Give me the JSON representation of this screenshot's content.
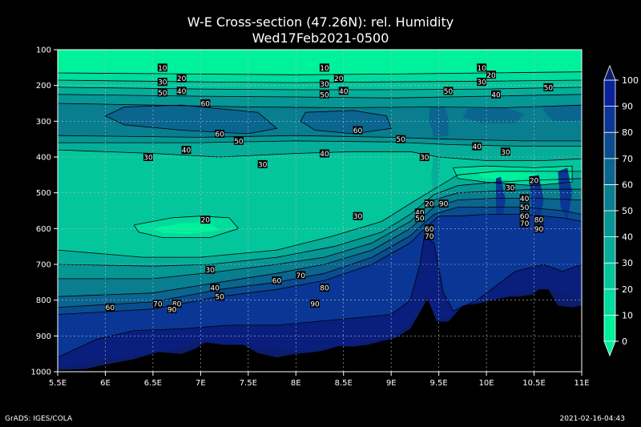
{
  "chart_data": {
    "type": "heatmap",
    "title": "W-E Cross-section (47.26N): rel. Humidity",
    "subtitle": "Wed17Feb2021-0500",
    "x_ticks": [
      "5.5E",
      "6E",
      "6.5E",
      "7E",
      "7.5E",
      "8E",
      "8.5E",
      "9E",
      "9.5E",
      "10E",
      "10.5E",
      "11E"
    ],
    "x_range": [
      5.5,
      11.0
    ],
    "y_ticks": [
      100,
      200,
      300,
      400,
      500,
      600,
      700,
      800,
      900,
      1000
    ],
    "y_range": [
      100,
      1000
    ],
    "y_inverted": true,
    "grid": true,
    "colorbar": {
      "levels": [
        0,
        10,
        20,
        30,
        40,
        50,
        60,
        70,
        80,
        90,
        100
      ],
      "labels": [
        "0",
        "10",
        "20",
        "30",
        "40",
        "50",
        "60",
        "70",
        "80",
        "90",
        "100"
      ],
      "colors": [
        "#00f19b",
        "#00dc9d",
        "#04c69c",
        "#05ae98",
        "#069694",
        "#087e8f",
        "#0a658f",
        "#0a4c8f",
        "#0a3795",
        "#0b239a",
        "#0a1e7e",
        "#0b1d6c"
      ]
    },
    "contour_labels": [
      {
        "lon": 6.6,
        "p": 150,
        "text": "10"
      },
      {
        "lon": 6.6,
        "p": 190,
        "text": "30"
      },
      {
        "lon": 6.8,
        "p": 180,
        "text": "20"
      },
      {
        "lon": 6.6,
        "p": 220,
        "text": "50"
      },
      {
        "lon": 6.8,
        "p": 215,
        "text": "40"
      },
      {
        "lon": 7.05,
        "p": 250,
        "text": "60"
      },
      {
        "lon": 8.3,
        "p": 150,
        "text": "10"
      },
      {
        "lon": 8.45,
        "p": 180,
        "text": "20"
      },
      {
        "lon": 8.3,
        "p": 195,
        "text": "30"
      },
      {
        "lon": 8.3,
        "p": 225,
        "text": "50"
      },
      {
        "lon": 8.5,
        "p": 215,
        "text": "40"
      },
      {
        "lon": 9.95,
        "p": 150,
        "text": "10"
      },
      {
        "lon": 10.05,
        "p": 170,
        "text": "20"
      },
      {
        "lon": 9.95,
        "p": 190,
        "text": "30"
      },
      {
        "lon": 9.6,
        "p": 215,
        "text": "50"
      },
      {
        "lon": 10.1,
        "p": 225,
        "text": "40"
      },
      {
        "lon": 10.65,
        "p": 205,
        "text": "50"
      },
      {
        "lon": 7.2,
        "p": 335,
        "text": "60"
      },
      {
        "lon": 7.4,
        "p": 355,
        "text": "50"
      },
      {
        "lon": 6.85,
        "p": 380,
        "text": "40"
      },
      {
        "lon": 6.45,
        "p": 400,
        "text": "30"
      },
      {
        "lon": 7.65,
        "p": 420,
        "text": "30"
      },
      {
        "lon": 8.3,
        "p": 390,
        "text": "40"
      },
      {
        "lon": 8.65,
        "p": 325,
        "text": "60"
      },
      {
        "lon": 9.1,
        "p": 350,
        "text": "50"
      },
      {
        "lon": 9.35,
        "p": 400,
        "text": "30"
      },
      {
        "lon": 9.9,
        "p": 370,
        "text": "40"
      },
      {
        "lon": 10.2,
        "p": 385,
        "text": "30"
      },
      {
        "lon": 10.5,
        "p": 465,
        "text": "20"
      },
      {
        "lon": 10.25,
        "p": 485,
        "text": "30"
      },
      {
        "lon": 10.4,
        "p": 515,
        "text": "40"
      },
      {
        "lon": 10.4,
        "p": 540,
        "text": "50"
      },
      {
        "lon": 10.4,
        "p": 565,
        "text": "60"
      },
      {
        "lon": 10.4,
        "p": 585,
        "text": "70"
      },
      {
        "lon": 10.55,
        "p": 575,
        "text": "80"
      },
      {
        "lon": 10.55,
        "p": 600,
        "text": "90"
      },
      {
        "lon": 9.4,
        "p": 530,
        "text": "20"
      },
      {
        "lon": 9.3,
        "p": 555,
        "text": "40"
      },
      {
        "lon": 9.3,
        "p": 570,
        "text": "50"
      },
      {
        "lon": 9.55,
        "p": 530,
        "text": "90"
      },
      {
        "lon": 9.4,
        "p": 600,
        "text": "60"
      },
      {
        "lon": 9.4,
        "p": 620,
        "text": "70"
      },
      {
        "lon": 8.65,
        "p": 565,
        "text": "30"
      },
      {
        "lon": 7.05,
        "p": 575,
        "text": "20"
      },
      {
        "lon": 7.1,
        "p": 715,
        "text": "30"
      },
      {
        "lon": 7.15,
        "p": 765,
        "text": "40"
      },
      {
        "lon": 7.2,
        "p": 790,
        "text": "50"
      },
      {
        "lon": 7.8,
        "p": 745,
        "text": "60"
      },
      {
        "lon": 8.05,
        "p": 730,
        "text": "70"
      },
      {
        "lon": 8.3,
        "p": 765,
        "text": "80"
      },
      {
        "lon": 8.2,
        "p": 810,
        "text": "90"
      },
      {
        "lon": 6.55,
        "p": 810,
        "text": "70"
      },
      {
        "lon": 6.75,
        "p": 810,
        "text": "80"
      },
      {
        "lon": 6.7,
        "p": 825,
        "text": "90"
      },
      {
        "lon": 6.05,
        "p": 820,
        "text": "60"
      }
    ],
    "terrain_surface": [
      [
        5.5,
        995
      ],
      [
        5.8,
        992
      ],
      [
        6.0,
        980
      ],
      [
        6.3,
        965
      ],
      [
        6.55,
        945
      ],
      [
        6.8,
        950
      ],
      [
        6.95,
        935
      ],
      [
        7.05,
        918
      ],
      [
        7.25,
        925
      ],
      [
        7.45,
        925
      ],
      [
        7.6,
        948
      ],
      [
        7.8,
        960
      ],
      [
        8.0,
        950
      ],
      [
        8.2,
        945
      ],
      [
        8.3,
        940
      ],
      [
        8.45,
        928
      ],
      [
        8.6,
        930
      ],
      [
        8.75,
        925
      ],
      [
        8.9,
        915
      ],
      [
        9.05,
        905
      ],
      [
        9.2,
        880
      ],
      [
        9.3,
        835
      ],
      [
        9.38,
        795
      ],
      [
        9.48,
        860
      ],
      [
        9.6,
        860
      ],
      [
        9.75,
        815
      ],
      [
        9.9,
        810
      ],
      [
        10.05,
        800
      ],
      [
        10.25,
        790
      ],
      [
        10.35,
        790
      ],
      [
        10.48,
        785
      ],
      [
        10.55,
        770
      ],
      [
        10.65,
        770
      ],
      [
        10.75,
        815
      ],
      [
        10.9,
        820
      ],
      [
        11.0,
        815
      ]
    ]
  },
  "footer": {
    "left": "GrADS: IGES/COLA",
    "right": "2021-02-16-04:43"
  }
}
